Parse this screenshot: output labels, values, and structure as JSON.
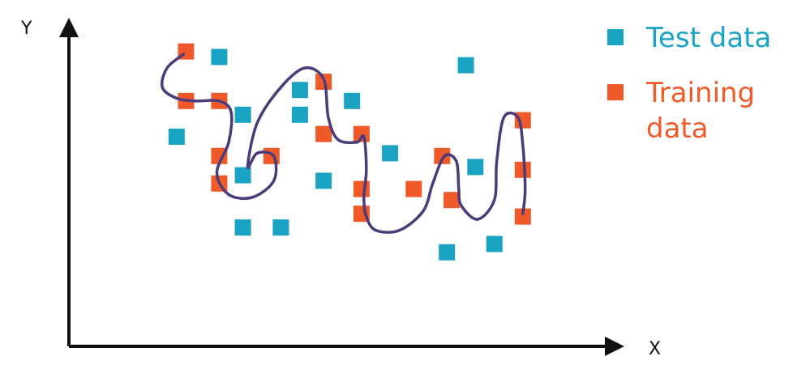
{
  "chart_data": {
    "type": "scatter",
    "title": "",
    "xlabel": "X",
    "ylabel": "Y",
    "xlim": [
      0,
      10
    ],
    "ylim": [
      0,
      10
    ],
    "grid": false,
    "legend_position": "top-right",
    "series": [
      {
        "name": "Test data",
        "color": "#1aa3c3",
        "points": [
          [
            1.5,
            6.5
          ],
          [
            2.4,
            9.4
          ],
          [
            2.9,
            7.3
          ],
          [
            2.9,
            5.1
          ],
          [
            2.9,
            3.2
          ],
          [
            3.7,
            3.2
          ],
          [
            4.1,
            8.2
          ],
          [
            4.1,
            7.3
          ],
          [
            4.6,
            4.9
          ],
          [
            5.2,
            7.8
          ],
          [
            6.0,
            5.9
          ],
          [
            7.2,
            2.3
          ],
          [
            7.6,
            9.1
          ],
          [
            7.8,
            5.4
          ],
          [
            8.2,
            2.6
          ]
        ]
      },
      {
        "name": "Training data",
        "color": "#f05a28",
        "points": [
          [
            1.7,
            9.6
          ],
          [
            1.7,
            7.8
          ],
          [
            2.4,
            7.8
          ],
          [
            2.4,
            5.8
          ],
          [
            2.4,
            4.8
          ],
          [
            3.5,
            5.8
          ],
          [
            4.6,
            8.5
          ],
          [
            4.6,
            6.6
          ],
          [
            5.4,
            6.6
          ],
          [
            5.4,
            4.6
          ],
          [
            5.4,
            3.7
          ],
          [
            6.5,
            4.6
          ],
          [
            7.1,
            5.8
          ],
          [
            7.3,
            4.2
          ],
          [
            8.8,
            7.1
          ],
          [
            8.8,
            5.3
          ],
          [
            8.8,
            3.6
          ]
        ]
      }
    ],
    "fitted_curve": {
      "color": "#4b3b7a",
      "points": [
        [
          1.65,
          9.5
        ],
        [
          1.3,
          9.0
        ],
        [
          1.2,
          8.3
        ],
        [
          1.5,
          7.9
        ],
        [
          1.9,
          7.8
        ],
        [
          2.4,
          7.8
        ],
        [
          2.65,
          7.4
        ],
        [
          2.6,
          6.3
        ],
        [
          2.35,
          5.2
        ],
        [
          2.6,
          4.4
        ],
        [
          3.1,
          4.3
        ],
        [
          3.55,
          4.9
        ],
        [
          3.55,
          5.8
        ],
        [
          3.2,
          5.9
        ],
        [
          3.0,
          5.4
        ],
        [
          3.2,
          7.0
        ],
        [
          3.7,
          8.3
        ],
        [
          4.2,
          9.0
        ],
        [
          4.6,
          8.6
        ],
        [
          4.7,
          7.2
        ],
        [
          4.9,
          6.4
        ],
        [
          5.3,
          6.3
        ],
        [
          5.45,
          6.5
        ],
        [
          5.5,
          5.3
        ],
        [
          5.45,
          4.3
        ],
        [
          5.5,
          3.6
        ],
        [
          5.7,
          3.1
        ],
        [
          6.2,
          3.1
        ],
        [
          6.7,
          3.8
        ],
        [
          6.9,
          4.8
        ],
        [
          7.15,
          5.8
        ],
        [
          7.4,
          5.6
        ],
        [
          7.45,
          4.6
        ],
        [
          7.5,
          4.0
        ],
        [
          7.85,
          3.5
        ],
        [
          8.2,
          4.2
        ],
        [
          8.25,
          5.6
        ],
        [
          8.4,
          7.2
        ],
        [
          8.7,
          7.2
        ],
        [
          8.8,
          6.2
        ],
        [
          8.85,
          4.6
        ],
        [
          8.8,
          3.7
        ]
      ]
    }
  }
}
